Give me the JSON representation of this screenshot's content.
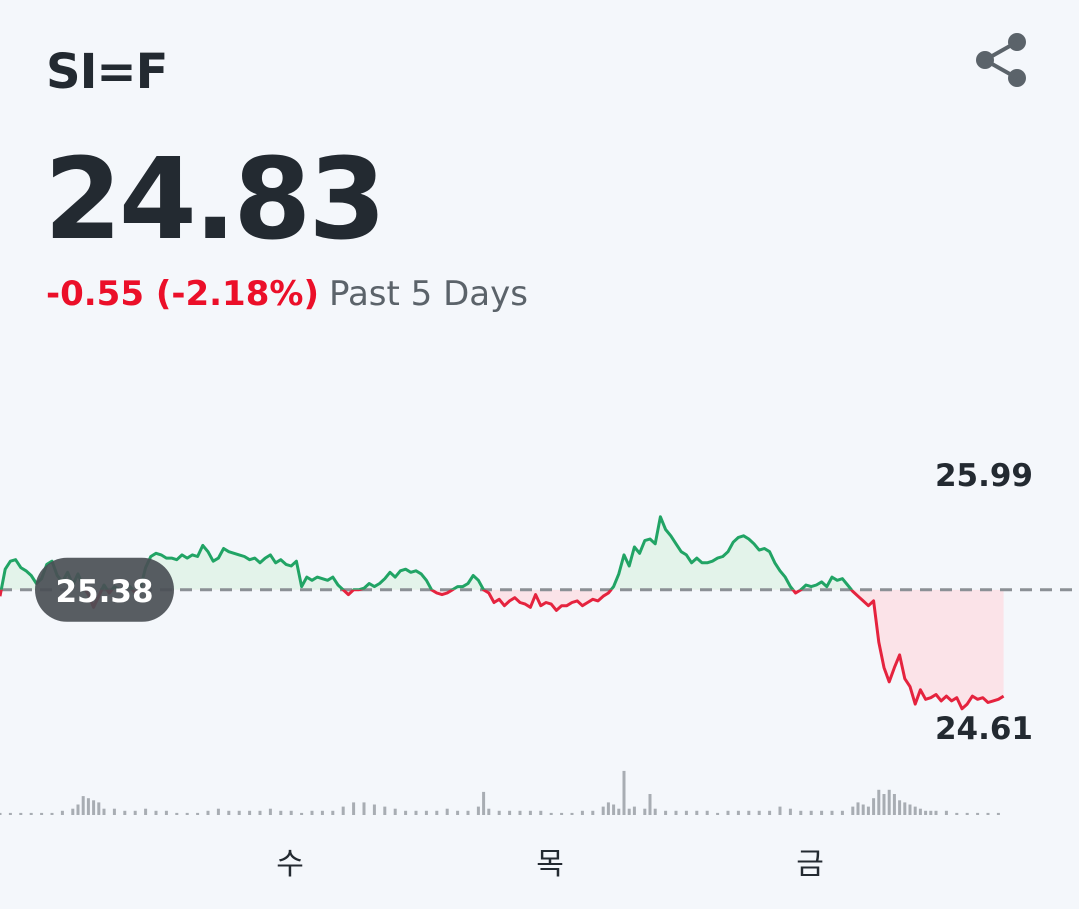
{
  "symbol": "SI=F",
  "price": "24.83",
  "change": "-0.55 (-2.18%)",
  "period_label": "Past 5 Days",
  "icons": {
    "share": "share-icon"
  },
  "colors": {
    "up": "#21a465",
    "down": "#e5233e",
    "up_fill": "#e3f3ea",
    "down_fill": "#fbe3e8",
    "baseline": "#8b9095",
    "volume": "#a8adb3",
    "badge_bg": "#4a4f55",
    "text_dark": "#232a31"
  },
  "chart_data": {
    "type": "line",
    "baseline": 25.38,
    "baseline_label": "25.38",
    "high_label": "25.99",
    "low_label": "24.61",
    "ylim": [
      24.61,
      25.99
    ],
    "x_tick_labels": [
      {
        "label": "수",
        "x": 95
      },
      {
        "label": "목",
        "x": 195
      },
      {
        "label": "금",
        "x": 295
      }
    ],
    "x_range": [
      0,
      370
    ],
    "series": [
      {
        "values": [
          [
            0,
            25.34
          ],
          [
            2,
            25.51
          ],
          [
            4,
            25.56
          ],
          [
            6,
            25.57
          ],
          [
            8,
            25.52
          ],
          [
            10,
            25.5
          ],
          [
            12,
            25.47
          ],
          [
            14,
            25.42
          ],
          [
            16,
            25.45
          ],
          [
            18,
            25.54
          ],
          [
            20,
            25.56
          ],
          [
            22,
            25.47
          ],
          [
            24,
            25.43
          ],
          [
            26,
            25.49
          ],
          [
            28,
            25.41
          ],
          [
            30,
            25.48
          ],
          [
            32,
            25.4
          ],
          [
            34,
            25.35
          ],
          [
            36,
            25.27
          ],
          [
            38,
            25.34
          ],
          [
            40,
            25.41
          ],
          [
            42,
            25.36
          ],
          [
            44,
            25.4
          ],
          [
            46,
            25.38
          ],
          [
            48,
            25.39
          ],
          [
            50,
            25.4
          ],
          [
            52,
            25.36
          ],
          [
            54,
            25.39
          ],
          [
            56,
            25.52
          ],
          [
            58,
            25.59
          ],
          [
            60,
            25.61
          ],
          [
            62,
            25.6
          ],
          [
            64,
            25.58
          ],
          [
            66,
            25.58
          ],
          [
            68,
            25.57
          ],
          [
            70,
            25.6
          ],
          [
            72,
            25.58
          ],
          [
            74,
            25.6
          ],
          [
            76,
            25.59
          ],
          [
            78,
            25.66
          ],
          [
            80,
            25.62
          ],
          [
            82,
            25.56
          ],
          [
            84,
            25.58
          ],
          [
            86,
            25.64
          ],
          [
            88,
            25.62
          ],
          [
            90,
            25.61
          ],
          [
            92,
            25.6
          ],
          [
            94,
            25.59
          ],
          [
            96,
            25.57
          ],
          [
            98,
            25.58
          ],
          [
            100,
            25.55
          ],
          [
            102,
            25.58
          ],
          [
            104,
            25.6
          ],
          [
            106,
            25.55
          ],
          [
            108,
            25.57
          ],
          [
            110,
            25.54
          ],
          [
            112,
            25.53
          ],
          [
            114,
            25.56
          ],
          [
            116,
            25.4
          ],
          [
            118,
            25.46
          ],
          [
            120,
            25.44
          ],
          [
            122,
            25.46
          ],
          [
            124,
            25.45
          ],
          [
            126,
            25.44
          ],
          [
            128,
            25.46
          ],
          [
            130,
            25.41
          ],
          [
            132,
            25.38
          ],
          [
            134,
            25.35
          ],
          [
            136,
            25.38
          ],
          [
            138,
            25.38
          ],
          [
            140,
            25.39
          ],
          [
            142,
            25.42
          ],
          [
            144,
            25.4
          ],
          [
            146,
            25.42
          ],
          [
            148,
            25.45
          ],
          [
            150,
            25.49
          ],
          [
            152,
            25.46
          ],
          [
            154,
            25.5
          ],
          [
            156,
            25.51
          ],
          [
            158,
            25.49
          ],
          [
            160,
            25.5
          ],
          [
            162,
            25.48
          ],
          [
            164,
            25.44
          ],
          [
            166,
            25.38
          ],
          [
            168,
            25.36
          ],
          [
            170,
            25.35
          ],
          [
            172,
            25.36
          ],
          [
            174,
            25.38
          ],
          [
            176,
            25.4
          ],
          [
            178,
            25.4
          ],
          [
            180,
            25.42
          ],
          [
            182,
            25.47
          ],
          [
            184,
            25.44
          ],
          [
            186,
            25.38
          ],
          [
            188,
            25.36
          ],
          [
            190,
            25.3
          ],
          [
            192,
            25.32
          ],
          [
            194,
            25.28
          ],
          [
            196,
            25.31
          ],
          [
            198,
            25.33
          ],
          [
            200,
            25.3
          ],
          [
            202,
            25.29
          ],
          [
            204,
            25.27
          ],
          [
            206,
            25.35
          ],
          [
            208,
            25.28
          ],
          [
            210,
            25.3
          ],
          [
            212,
            25.29
          ],
          [
            214,
            25.25
          ],
          [
            216,
            25.28
          ],
          [
            218,
            25.28
          ],
          [
            220,
            25.3
          ],
          [
            222,
            25.31
          ],
          [
            224,
            25.28
          ],
          [
            226,
            25.3
          ],
          [
            228,
            25.32
          ],
          [
            230,
            25.31
          ],
          [
            232,
            25.34
          ],
          [
            234,
            25.36
          ],
          [
            236,
            25.4
          ],
          [
            238,
            25.48
          ],
          [
            240,
            25.6
          ],
          [
            242,
            25.53
          ],
          [
            244,
            25.65
          ],
          [
            246,
            25.61
          ],
          [
            248,
            25.69
          ],
          [
            250,
            25.7
          ],
          [
            252,
            25.67
          ],
          [
            254,
            25.84
          ],
          [
            256,
            25.76
          ],
          [
            258,
            25.72
          ],
          [
            260,
            25.67
          ],
          [
            262,
            25.62
          ],
          [
            264,
            25.6
          ],
          [
            266,
            25.55
          ],
          [
            268,
            25.58
          ],
          [
            270,
            25.55
          ],
          [
            272,
            25.55
          ],
          [
            274,
            25.56
          ],
          [
            276,
            25.58
          ],
          [
            278,
            25.59
          ],
          [
            280,
            25.62
          ],
          [
            282,
            25.68
          ],
          [
            284,
            25.71
          ],
          [
            286,
            25.72
          ],
          [
            288,
            25.7
          ],
          [
            290,
            25.67
          ],
          [
            292,
            25.63
          ],
          [
            294,
            25.64
          ],
          [
            296,
            25.62
          ],
          [
            298,
            25.55
          ],
          [
            300,
            25.5
          ],
          [
            302,
            25.46
          ],
          [
            304,
            25.4
          ],
          [
            306,
            25.36
          ],
          [
            308,
            25.38
          ],
          [
            310,
            25.41
          ],
          [
            312,
            25.4
          ],
          [
            314,
            25.41
          ],
          [
            316,
            25.43
          ],
          [
            318,
            25.4
          ],
          [
            320,
            25.46
          ],
          [
            322,
            25.44
          ],
          [
            324,
            25.45
          ],
          [
            326,
            25.41
          ],
          [
            328,
            25.37
          ],
          [
            330,
            25.34
          ],
          [
            332,
            25.31
          ],
          [
            334,
            25.28
          ],
          [
            336,
            25.31
          ],
          [
            338,
            25.05
          ],
          [
            340,
            24.89
          ],
          [
            342,
            24.8
          ],
          [
            344,
            24.89
          ],
          [
            346,
            24.97
          ],
          [
            348,
            24.82
          ],
          [
            350,
            24.77
          ],
          [
            352,
            24.66
          ],
          [
            354,
            24.75
          ],
          [
            356,
            24.69
          ],
          [
            358,
            24.7
          ],
          [
            360,
            24.72
          ],
          [
            362,
            24.68
          ],
          [
            364,
            24.71
          ],
          [
            366,
            24.68
          ],
          [
            368,
            24.7
          ],
          [
            370,
            24.63
          ],
          [
            372,
            24.66
          ],
          [
            374,
            24.71
          ],
          [
            376,
            24.69
          ],
          [
            378,
            24.7
          ],
          [
            380,
            24.67
          ],
          [
            382,
            24.68
          ],
          [
            384,
            24.69
          ],
          [
            386,
            24.71
          ]
        ]
      }
    ],
    "volume": [
      [
        0,
        1
      ],
      [
        4,
        1
      ],
      [
        8,
        1
      ],
      [
        12,
        1
      ],
      [
        16,
        1
      ],
      [
        20,
        1
      ],
      [
        24,
        2
      ],
      [
        28,
        3
      ],
      [
        30,
        5
      ],
      [
        32,
        9
      ],
      [
        34,
        8
      ],
      [
        36,
        7
      ],
      [
        38,
        6
      ],
      [
        40,
        3
      ],
      [
        44,
        3
      ],
      [
        48,
        2
      ],
      [
        52,
        2
      ],
      [
        56,
        3
      ],
      [
        60,
        2
      ],
      [
        64,
        2
      ],
      [
        68,
        1
      ],
      [
        72,
        1
      ],
      [
        76,
        1
      ],
      [
        80,
        2
      ],
      [
        84,
        3
      ],
      [
        88,
        2
      ],
      [
        92,
        2
      ],
      [
        96,
        2
      ],
      [
        100,
        2
      ],
      [
        104,
        3
      ],
      [
        108,
        2
      ],
      [
        112,
        2
      ],
      [
        116,
        1
      ],
      [
        120,
        2
      ],
      [
        124,
        2
      ],
      [
        128,
        2
      ],
      [
        132,
        4
      ],
      [
        136,
        6
      ],
      [
        140,
        6
      ],
      [
        144,
        5
      ],
      [
        148,
        4
      ],
      [
        152,
        3
      ],
      [
        156,
        2
      ],
      [
        160,
        2
      ],
      [
        164,
        2
      ],
      [
        168,
        2
      ],
      [
        172,
        3
      ],
      [
        176,
        2
      ],
      [
        180,
        2
      ],
      [
        184,
        4
      ],
      [
        186,
        11
      ],
      [
        188,
        3
      ],
      [
        192,
        2
      ],
      [
        196,
        2
      ],
      [
        200,
        2
      ],
      [
        204,
        2
      ],
      [
        208,
        2
      ],
      [
        212,
        1
      ],
      [
        216,
        1
      ],
      [
        220,
        1
      ],
      [
        224,
        2
      ],
      [
        228,
        2
      ],
      [
        232,
        4
      ],
      [
        234,
        6
      ],
      [
        236,
        5
      ],
      [
        238,
        3
      ],
      [
        240,
        21
      ],
      [
        242,
        3
      ],
      [
        244,
        4
      ],
      [
        248,
        3
      ],
      [
        250,
        10
      ],
      [
        252,
        3
      ],
      [
        256,
        2
      ],
      [
        260,
        2
      ],
      [
        264,
        2
      ],
      [
        268,
        2
      ],
      [
        272,
        2
      ],
      [
        276,
        1
      ],
      [
        280,
        2
      ],
      [
        284,
        2
      ],
      [
        288,
        2
      ],
      [
        292,
        2
      ],
      [
        296,
        2
      ],
      [
        300,
        4
      ],
      [
        304,
        3
      ],
      [
        308,
        2
      ],
      [
        312,
        2
      ],
      [
        316,
        2
      ],
      [
        320,
        2
      ],
      [
        324,
        2
      ],
      [
        328,
        4
      ],
      [
        330,
        6
      ],
      [
        332,
        5
      ],
      [
        334,
        4
      ],
      [
        336,
        8
      ],
      [
        338,
        12
      ],
      [
        340,
        10
      ],
      [
        342,
        12
      ],
      [
        344,
        10
      ],
      [
        346,
        7
      ],
      [
        348,
        6
      ],
      [
        350,
        5
      ],
      [
        352,
        4
      ],
      [
        354,
        3
      ],
      [
        356,
        2
      ],
      [
        358,
        2
      ],
      [
        360,
        2
      ],
      [
        364,
        2
      ],
      [
        368,
        1
      ],
      [
        372,
        1
      ],
      [
        376,
        1
      ],
      [
        380,
        1
      ],
      [
        384,
        1
      ]
    ]
  }
}
